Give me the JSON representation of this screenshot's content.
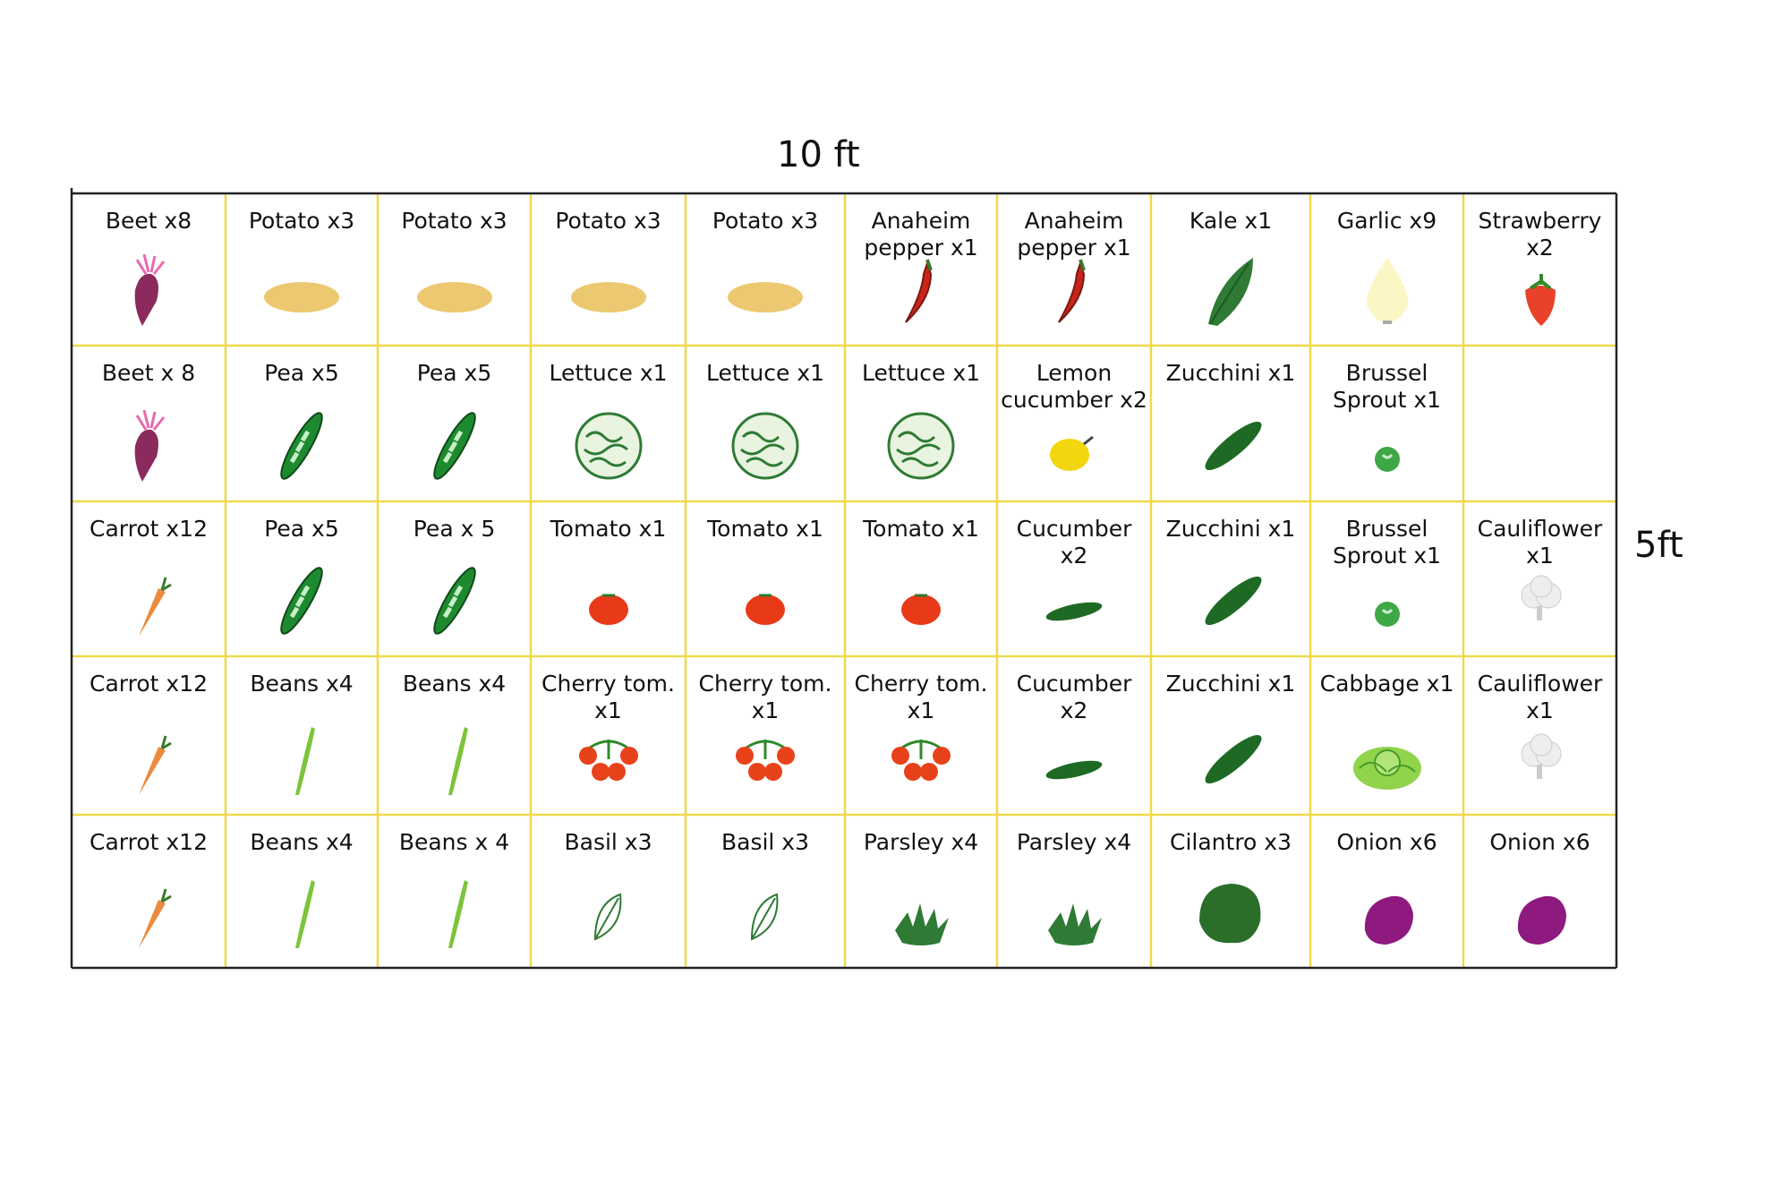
{
  "dimensions": {
    "width": "10 ft",
    "height": "5ft"
  },
  "table": {
    "rows": [
      [
        "Beet x8",
        "Potato x3",
        "Potato x3",
        "Potato x3",
        "Potato x3",
        "Anaheim pepper x1",
        "Anaheim pepper x1",
        "Kale x1",
        "Garlic x9",
        "Strawberry x2"
      ],
      [
        "Beet x 8",
        "Pea x5",
        "Pea x5",
        "Lettuce x1",
        "Lettuce x1",
        "Lettuce x1",
        "Lemon cucumber x2",
        "Zucchini x1",
        "Brussel Sprout x1",
        null
      ],
      [
        "Carrot x12",
        "Pea x5",
        "Pea x 5",
        "Tomato x1",
        "Tomato x1",
        "Tomato x1",
        "Cucumber x2",
        "Zucchini x1",
        "Brussel Sprout x1",
        "Cauliflower x1"
      ],
      [
        "Carrot x12",
        "Beans x4",
        "Beans x4",
        "Cherry tom. x1",
        "Cherry tom. x1",
        "Cherry tom. x1",
        "Cucumber x2",
        "Zucchini x1",
        "Cabbage x1",
        "Cauliflower x1"
      ],
      [
        "Carrot x12",
        "Beans x4",
        "Beans x 4",
        "Basil x3",
        "Basil x3",
        "Parsley x4",
        "Parsley x4",
        "Cilantro x3",
        "Onion x6",
        "Onion x6"
      ]
    ]
  }
}
